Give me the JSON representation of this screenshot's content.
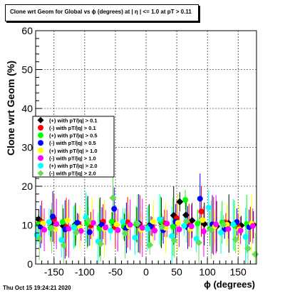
{
  "chart_data": {
    "type": "scatter",
    "title": "Clone wrt Geom for Global vs ϕ (degrees) at | η | <= 1.0 at pT > 0.11",
    "xlabel": "ϕ (degrees)",
    "ylabel": "Clone wrt Geom (%)",
    "xlim": [
      -180,
      180
    ],
    "ylim": [
      0,
      60
    ],
    "x_ticks": [
      -150,
      -100,
      -50,
      0,
      50,
      100,
      150
    ],
    "y_ticks": [
      0,
      10,
      20,
      30,
      40,
      50,
      60
    ],
    "grid": true,
    "legend_position": "left-middle",
    "series": [
      {
        "name": "(+) with pT/|q| > 0.1",
        "color": "#000000",
        "marker": "diamond",
        "x": [
          -175,
          -155,
          -135,
          -115,
          -95,
          -75,
          -55,
          -35,
          -15,
          5,
          25,
          45,
          55,
          65,
          75,
          95,
          115,
          135,
          155,
          175
        ],
        "y": [
          11.5,
          10.5,
          9.8,
          10.2,
          11.0,
          9.6,
          10.8,
          9.4,
          10.1,
          9.9,
          10.6,
          12.5,
          16.0,
          12.6,
          11.2,
          10.3,
          9.7,
          10.4,
          9.9,
          10.1
        ]
      },
      {
        "name": "(-) with pT/|q| > 0.1",
        "color": "#ff0000",
        "marker": "circle",
        "x": [
          -170,
          -150,
          -130,
          -110,
          -90,
          -70,
          -50,
          -30,
          -10,
          10,
          30,
          50,
          70,
          90,
          110,
          130,
          150,
          170
        ],
        "y": [
          10.8,
          11.6,
          9.5,
          10.4,
          9.9,
          10.9,
          9.4,
          10.7,
          10.2,
          9.6,
          10.5,
          11.8,
          10.0,
          13.5,
          9.8,
          10.6,
          9.5,
          10.2
        ]
      },
      {
        "name": "(+) with pT/|q| > 0.5",
        "color": "#00ff00",
        "marker": "circle",
        "x": [
          -176,
          -156,
          -136,
          -116,
          -96,
          -76,
          -56,
          -36,
          -16,
          4,
          24,
          44,
          64,
          84,
          104,
          124,
          144,
          164
        ],
        "y": [
          10.2,
          9.3,
          10.8,
          9.7,
          10.5,
          9.2,
          10.9,
          9.8,
          10.3,
          9.5,
          11.0,
          9.6,
          16.5,
          10.4,
          9.1,
          10.7,
          9.9,
          10.3
        ]
      },
      {
        "name": "(-) with pT/|q| > 0.5",
        "color": "#0000ff",
        "marker": "circle",
        "x": [
          -172,
          -152,
          -132,
          -112,
          -92,
          -72,
          -52,
          -32,
          -12,
          8,
          28,
          48,
          68,
          88,
          108,
          128,
          148,
          168
        ],
        "y": [
          9.6,
          12.2,
          8.9,
          10.6,
          8.2,
          10.1,
          14.2,
          9.3,
          10.5,
          9.8,
          8.7,
          10.9,
          9.4,
          16.8,
          10.2,
          9.0,
          10.8,
          9.5
        ]
      },
      {
        "name": "(+) with pT/|q| > 1.0",
        "color": "#ffff00",
        "marker": "circle",
        "x": [
          -168,
          -148,
          -128,
          -108,
          -88,
          -68,
          -48,
          -28,
          -8,
          12,
          32,
          52,
          72,
          92,
          112,
          132,
          152,
          172
        ],
        "y": [
          10.5,
          9.0,
          11.2,
          9.4,
          10.8,
          9.1,
          10.2,
          9.7,
          8.8,
          10.9,
          9.3,
          10.6,
          9.0,
          11.3,
          9.6,
          10.1,
          8.9,
          10.4
        ]
      },
      {
        "name": "(-) with pT/|q| > 1.0",
        "color": "#ff00ff",
        "marker": "circle",
        "x": [
          -166,
          -146,
          -126,
          -106,
          -86,
          -66,
          -46,
          -26,
          -6,
          14,
          34,
          54,
          74,
          94,
          114,
          134,
          154,
          174
        ],
        "y": [
          8.8,
          10.3,
          9.1,
          8.5,
          10.6,
          9.4,
          8.7,
          10.1,
          9.3,
          8.6,
          10.4,
          8.9,
          9.7,
          8.4,
          10.2,
          9.0,
          8.6,
          9.8
        ]
      },
      {
        "name": "(+) with pT/|q| > 2.0",
        "color": "#00ffff",
        "marker": "circle",
        "x": [
          -178,
          -158,
          -138,
          -118,
          -98,
          -78,
          -58,
          -38,
          -18,
          2,
          22,
          42,
          62,
          82,
          102,
          122,
          142,
          162
        ],
        "y": [
          7.5,
          10.8,
          6.2,
          9.4,
          12.0,
          5.8,
          8.6,
          10.9,
          6.8,
          9.1,
          11.5,
          7.2,
          9.8,
          6.5,
          14.5,
          8.1,
          10.2,
          7.0
        ]
      },
      {
        "name": "(-) with pT/|q| > 2.0",
        "color": "#66dd55",
        "marker": "diamond",
        "x": [
          -174,
          -154,
          -134,
          -114,
          -94,
          -74,
          -54,
          -34,
          -14,
          6,
          26,
          46,
          66,
          86,
          106,
          126,
          146,
          166,
          178
        ],
        "y": [
          6.5,
          9.2,
          4.8,
          8.1,
          11.2,
          5.2,
          17.0,
          7.9,
          10.4,
          4.9,
          9.6,
          6.1,
          11.0,
          5.5,
          8.8,
          10.1,
          6.3,
          4.0,
          2.5
        ]
      }
    ]
  },
  "footer": {
    "datestamp": "Thu Oct 15 19:24:21 2020"
  }
}
